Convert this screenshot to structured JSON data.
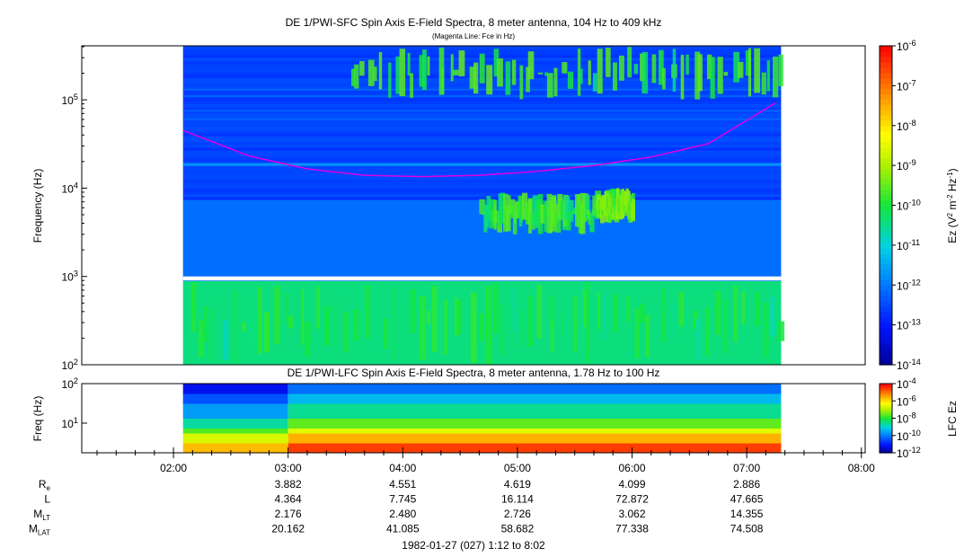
{
  "chart_data": [
    {
      "type": "heatmap",
      "title": "DE 1/PWI-SFC  Spin Axis E-Field Spectra, 8 meter antenna, 104 Hz to 409 kHz",
      "subtitle": "(Magenta Line: Fce in Hz)",
      "ylabel": "Frequency (Hz)",
      "yscale": "log",
      "ylim": [
        100,
        409000
      ],
      "yticks": [
        {
          "value": 100,
          "base": "10",
          "exp": "2"
        },
        {
          "value": 1000,
          "base": "10",
          "exp": "3"
        },
        {
          "value": 10000,
          "base": "10",
          "exp": "4"
        },
        {
          "value": 100000,
          "base": "10",
          "exp": "5"
        }
      ],
      "colorbar": {
        "label": "Ez (V2 m-2 Hz-1)",
        "label_parts": [
          "Ez (V",
          "2",
          " m",
          "-2",
          " Hz",
          "-1",
          ")"
        ],
        "scale": "log",
        "range": [
          1e-14,
          1e-06
        ],
        "ticks": [
          {
            "value": 1e-14,
            "base": "10",
            "exp": "-14"
          },
          {
            "value": 1e-13,
            "base": "10",
            "exp": "-13"
          },
          {
            "value": 1e-12,
            "base": "10",
            "exp": "-12"
          },
          {
            "value": 1e-11,
            "base": "10",
            "exp": "-11"
          },
          {
            "value": 1e-10,
            "base": "10",
            "exp": "-10"
          },
          {
            "value": 1e-09,
            "base": "10",
            "exp": "-9"
          },
          {
            "value": 1e-08,
            "base": "10",
            "exp": "-8"
          },
          {
            "value": 1e-07,
            "base": "10",
            "exp": "-7"
          },
          {
            "value": 1e-06,
            "base": "10",
            "exp": "-6"
          }
        ]
      },
      "data_time_range": [
        "02:05",
        "07:18"
      ],
      "gap_frequency_range": [
        900,
        1000
      ],
      "fce_line": {
        "color": "#e000e0",
        "points": [
          {
            "t": "02:05",
            "f": 45000
          },
          {
            "t": "02:40",
            "f": 23000
          },
          {
            "t": "03:10",
            "f": 16500
          },
          {
            "t": "03:40",
            "f": 14000
          },
          {
            "t": "04:10",
            "f": 13500
          },
          {
            "t": "04:40",
            "f": 14000
          },
          {
            "t": "05:10",
            "f": 15500
          },
          {
            "t": "05:40",
            "f": 18000
          },
          {
            "t": "06:10",
            "f": 22500
          },
          {
            "t": "06:40",
            "f": 32000
          },
          {
            "t": "07:15",
            "f": 92000
          }
        ]
      },
      "features": [
        {
          "t_range": [
            "03:30",
            "07:20"
          ],
          "f_range": [
            100000,
            400000
          ],
          "level": 1e-10
        },
        {
          "t_range": [
            "02:05",
            "07:18"
          ],
          "f_range": [
            100,
            900
          ],
          "level": 5e-11
        },
        {
          "t_range": [
            "04:40",
            "05:40"
          ],
          "f_range": [
            3000,
            9000
          ],
          "level": 1e-10
        },
        {
          "t_range": [
            "05:40",
            "06:00"
          ],
          "f_range": [
            4000,
            10000
          ],
          "level": 2e-10
        }
      ],
      "bright_lines": [
        {
          "f": 18500,
          "level": 2e-12
        }
      ]
    },
    {
      "type": "heatmap",
      "title": "DE 1/PWI-LFC  Spin Axis E-Field Spectra, 8 meter antenna, 1.78 Hz to 100 Hz",
      "ylabel": "Freq (Hz)",
      "yscale": "log",
      "ylim": [
        1.78,
        100
      ],
      "yticks": [
        {
          "value": 10,
          "base": "10",
          "exp": "1"
        },
        {
          "value": 100,
          "base": "10",
          "exp": "2"
        }
      ],
      "colorbar": {
        "label": "LFC Ez",
        "scale": "log",
        "range": [
          1e-12,
          0.0001
        ],
        "ticks": [
          {
            "value": 1e-12,
            "base": "10",
            "exp": "-12"
          },
          {
            "value": 1e-10,
            "base": "10",
            "exp": "-10"
          },
          {
            "value": 1e-08,
            "base": "10",
            "exp": "-8"
          },
          {
            "value": 1e-06,
            "base": "10",
            "exp": "-6"
          },
          {
            "value": 0.0001,
            "base": "10",
            "exp": "-4"
          }
        ]
      },
      "data_time_range": [
        "02:05",
        "07:18"
      ],
      "levels_by_frequency": [
        {
          "f": 2.5,
          "level": 3e-05
        },
        {
          "f": 4,
          "level": 3e-06
        },
        {
          "f": 6,
          "level": 3e-07
        },
        {
          "f": 10,
          "level": 3e-08
        },
        {
          "f": 20,
          "level": 3e-09
        },
        {
          "f": 40,
          "level": 5e-10
        },
        {
          "f": 80,
          "level": 8e-11
        }
      ]
    }
  ],
  "x_axis": {
    "range": [
      "01:12",
      "08:02"
    ],
    "ticks": [
      "02:00",
      "03:00",
      "04:00",
      "05:00",
      "06:00",
      "07:00",
      "08:00"
    ]
  },
  "ephemeris": {
    "rows": [
      {
        "base": "R",
        "sub": "e",
        "values": [
          "3.882",
          "4.551",
          "4.619",
          "4.099",
          "2.886"
        ]
      },
      {
        "base": "L",
        "sub": "",
        "values": [
          "4.364",
          "7.745",
          "16.114",
          "72.872",
          "47.665"
        ]
      },
      {
        "base": "M",
        "sub": "LT",
        "values": [
          "2.176",
          "2.480",
          "2.726",
          "3.062",
          "14.355"
        ]
      },
      {
        "base": "M",
        "sub": "LAT",
        "values": [
          "20.162",
          "41.085",
          "58.682",
          "77.338",
          "74.508"
        ]
      }
    ]
  },
  "footer": "1982-01-27 (027) 1:12 to 8:02"
}
